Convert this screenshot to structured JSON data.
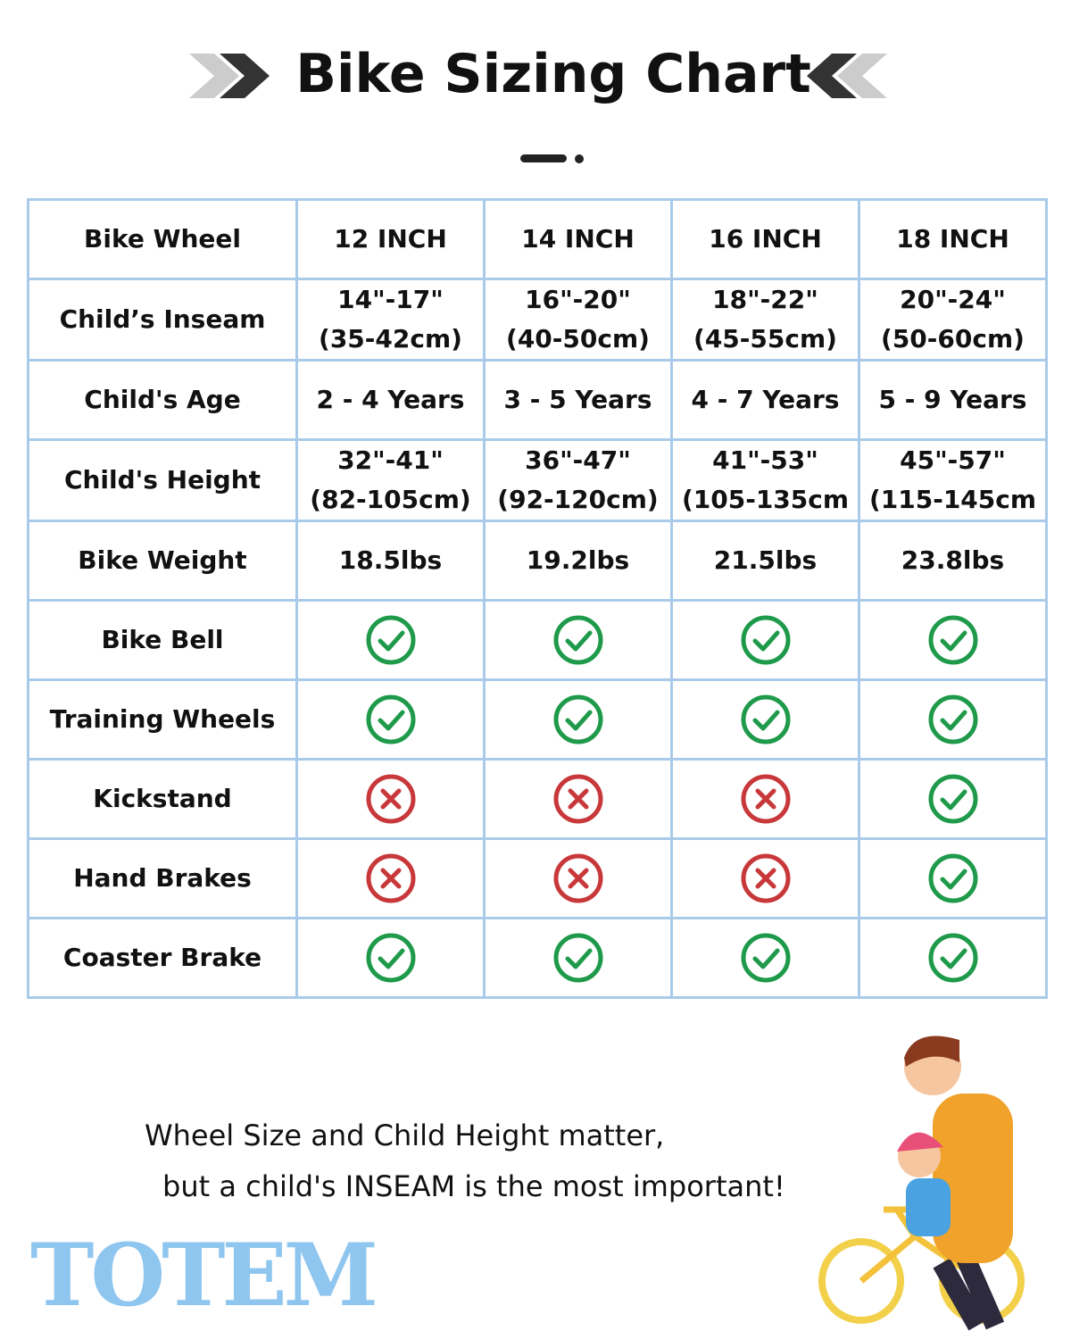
{
  "header": {
    "title": "Bike Sizing Chart"
  },
  "table": {
    "rows": [
      [
        "Bike Wheel",
        "12 INCH",
        "14 INCH",
        "16 INCH",
        "18 INCH"
      ],
      [
        "Child’s Inseam",
        [
          "14\"-17\"",
          "(35-42cm)"
        ],
        [
          "16\"-20\"",
          "(40-50cm)"
        ],
        [
          "18\"-22\"",
          "(45-55cm)"
        ],
        [
          "20\"-24\"",
          "(50-60cm)"
        ]
      ],
      [
        "Child's Age",
        "2 - 4 Years",
        "3 - 5 Years",
        "4 - 7 Years",
        "5 - 9 Years"
      ],
      [
        "Child's Height",
        [
          "32\"-41\"",
          "(82-105cm)"
        ],
        [
          "36\"-47\"",
          "(92-120cm)"
        ],
        [
          "41\"-53\"",
          "(105-135cm"
        ],
        [
          "45\"-57\"",
          "(115-145cm"
        ]
      ],
      [
        "Bike Weight",
        "18.5lbs",
        "19.2lbs",
        "21.5lbs",
        "23.8lbs"
      ],
      [
        "Bike Bell",
        true,
        true,
        true,
        true
      ],
      [
        "Training Wheels",
        true,
        true,
        true,
        true
      ],
      [
        "Kickstand",
        false,
        false,
        false,
        true
      ],
      [
        "Hand Brakes",
        false,
        false,
        false,
        true
      ],
      [
        "Coaster Brake",
        true,
        true,
        true,
        true
      ]
    ]
  },
  "note": {
    "lines": [
      "Wheel Size and Child Height matter,",
      "but a child's INSEAM is the most important!"
    ]
  },
  "logo": {
    "text": "TOTEM"
  }
}
